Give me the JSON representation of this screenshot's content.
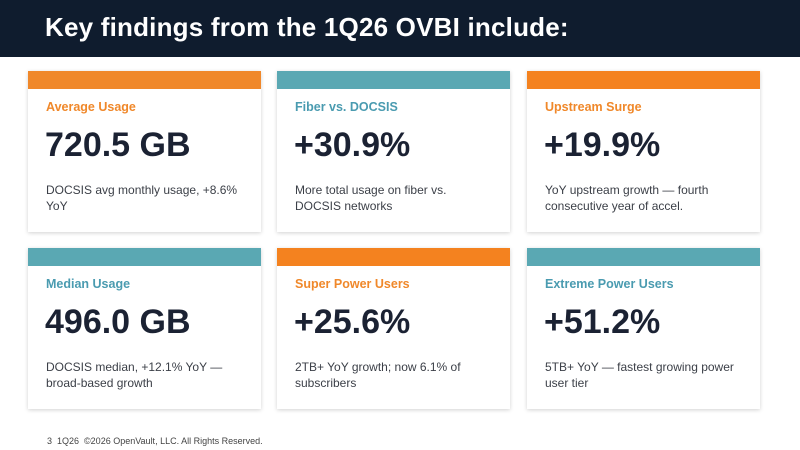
{
  "header": {
    "title": "Key findings from the 1Q26 OVBI include:"
  },
  "cards": [
    {
      "title": "Average Usage",
      "value": "720.5 GB",
      "desc": "DOCSIS avg monthly usage, +8.6% YoY"
    },
    {
      "title": "Fiber vs. DOCSIS",
      "value": "+30.9%",
      "desc": "More total usage on fiber vs. DOCSIS networks"
    },
    {
      "title": "Upstream Surge",
      "value": "+19.9%",
      "desc": "YoY upstream growth — fourth consecutive year of accel."
    },
    {
      "title": "Median Usage",
      "value": "496.0 GB",
      "desc": "DOCSIS median, +12.1% YoY — broad-based growth"
    },
    {
      "title": "Super Power Users",
      "value": "+25.6%",
      "desc": "2TB+ YoY growth; now 6.1% of subscribers"
    },
    {
      "title": "Extreme Power Users",
      "value": "+51.2%",
      "desc": "5TB+ YoY — fastest growing power user tier"
    }
  ],
  "footer": {
    "page": "3",
    "period": "1Q26",
    "copyright": "©2026 OpenVault, LLC. All Rights Reserved."
  },
  "colors": {
    "header_bg": "#0f1c2e",
    "orange": "#f0882a",
    "teal": "#5aa8b3"
  }
}
